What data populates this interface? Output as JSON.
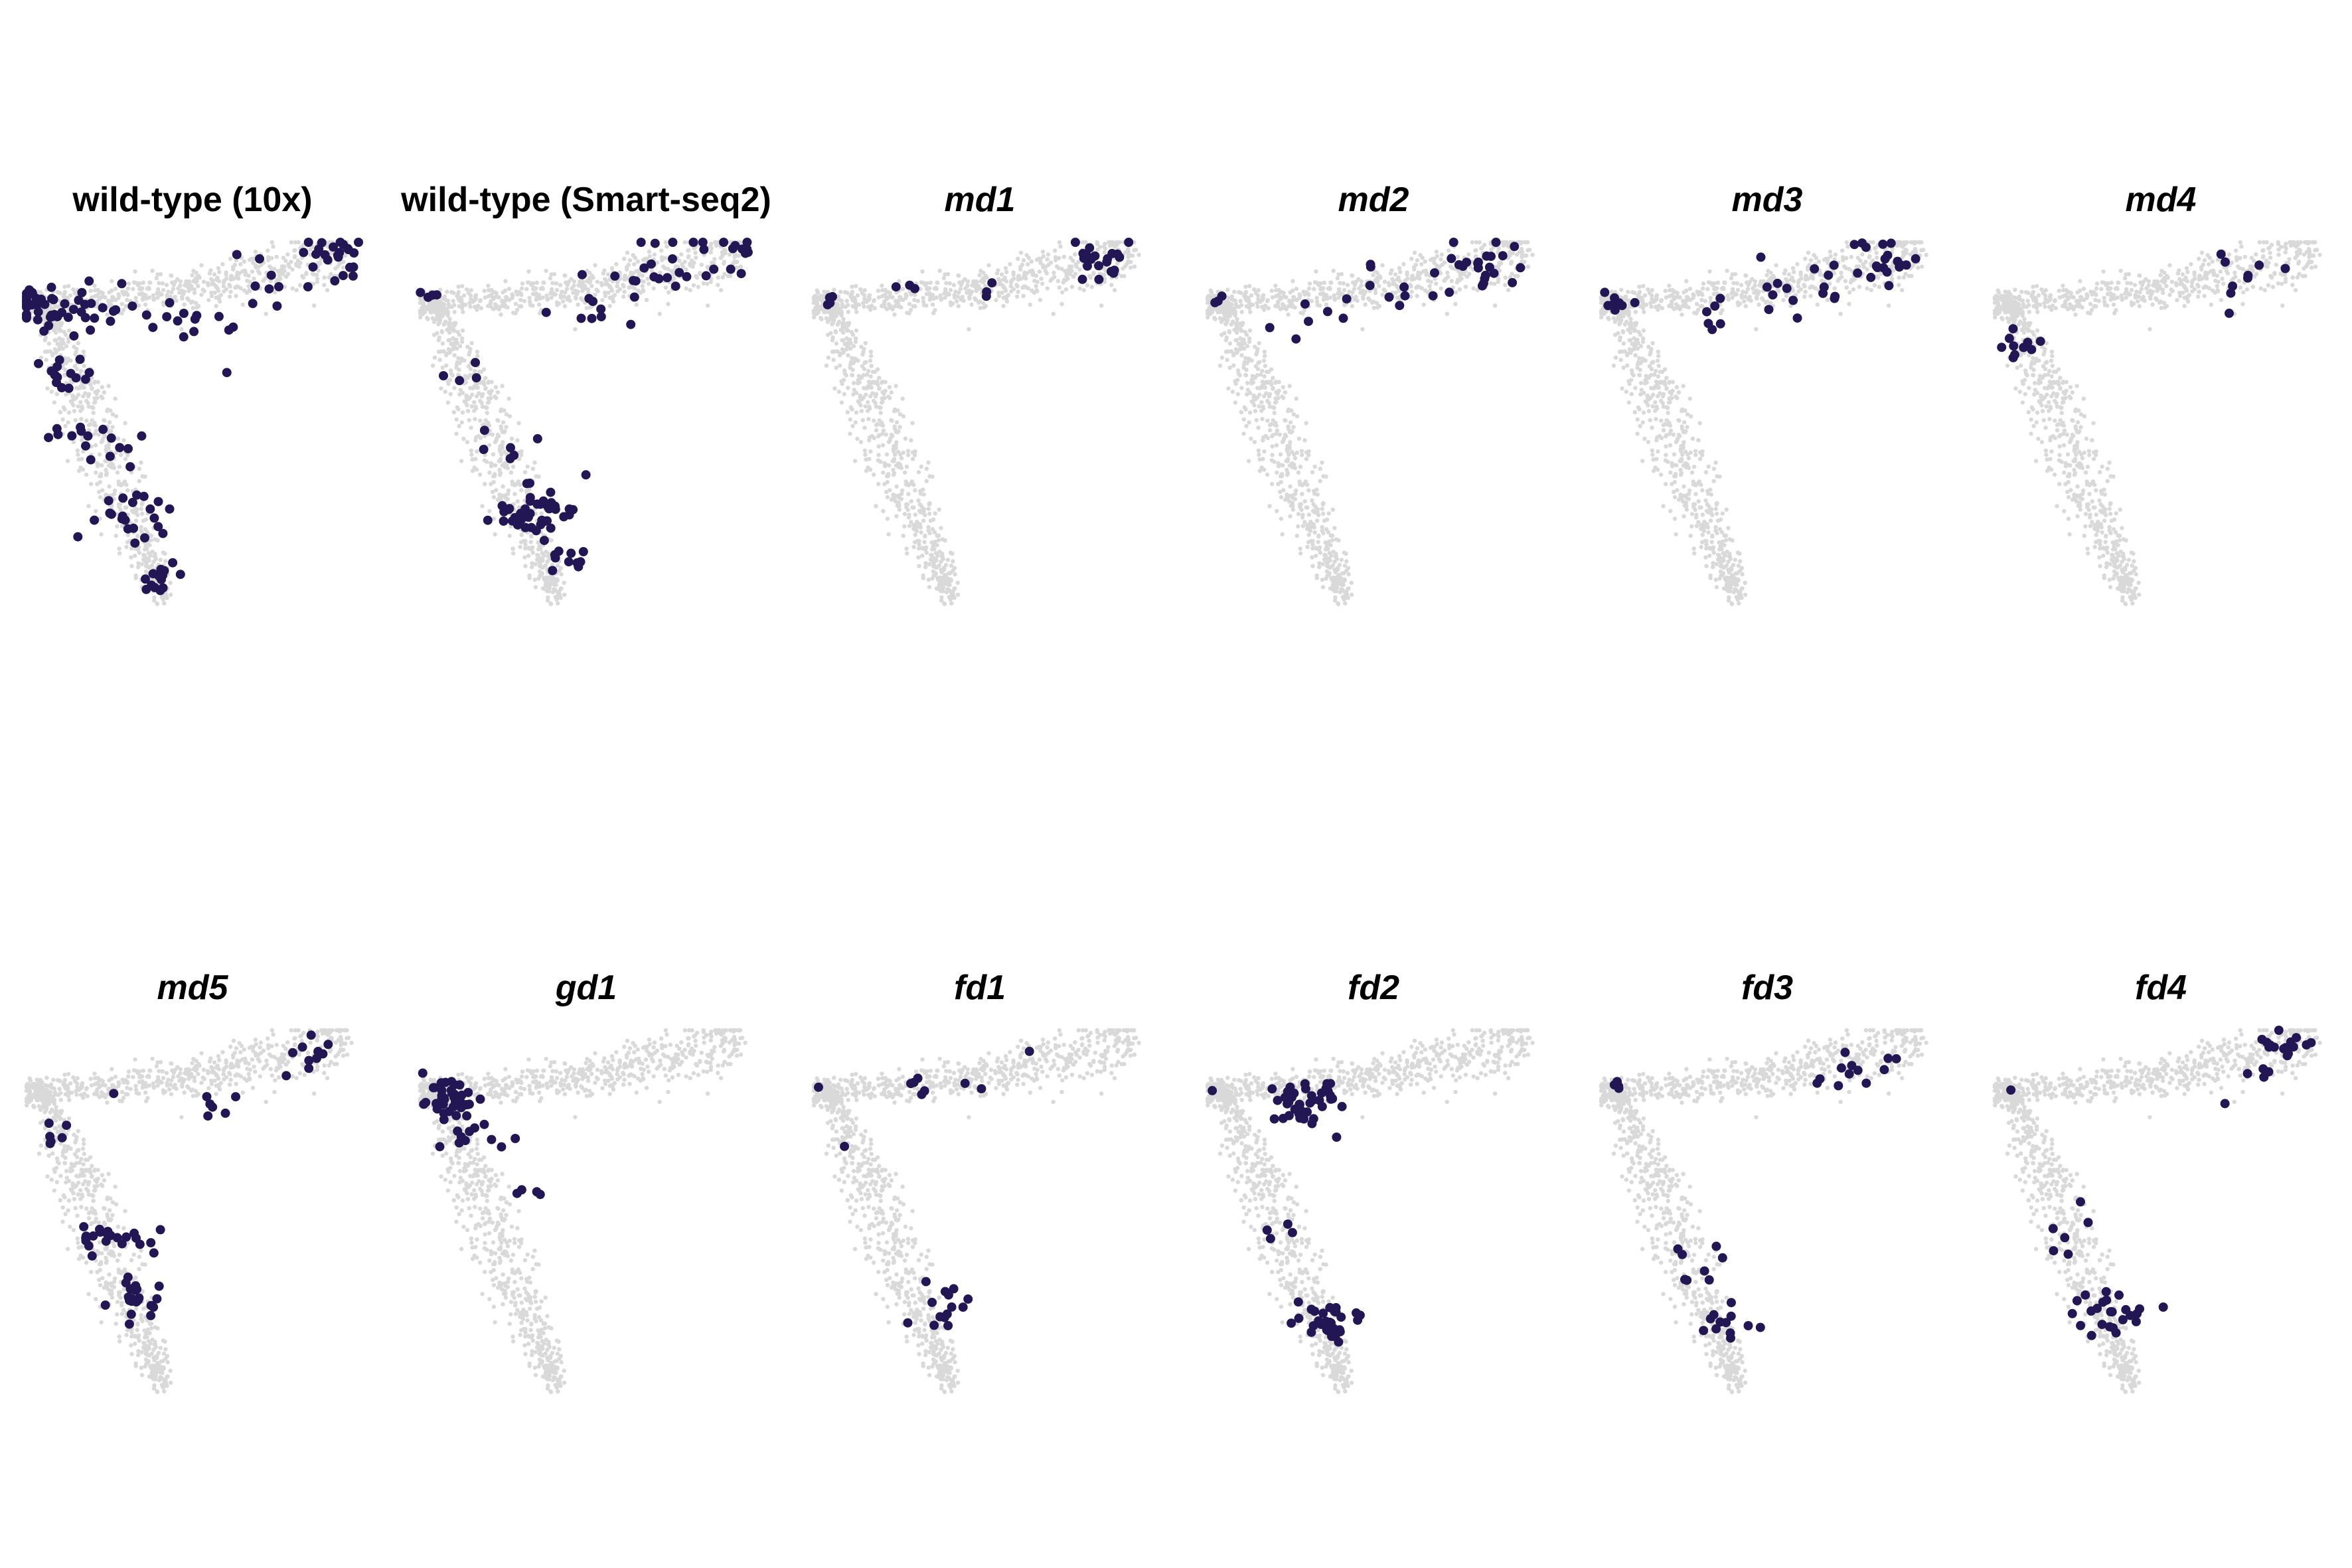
{
  "colors": {
    "background_cells": "#d9d9d9",
    "highlight_cells": "#231654",
    "background": "#ffffff"
  },
  "layout_hint": {
    "rows": 2,
    "cols": 6
  },
  "chart_data": [
    {
      "type": "scatter",
      "title": "wild-type (10x)",
      "italic": false,
      "highlight_clusters": [
        [
          0.0,
          0.17,
          22,
          0.05
        ],
        [
          0.07,
          0.2,
          14,
          0.06
        ],
        [
          0.18,
          0.2,
          18,
          0.08
        ],
        [
          0.42,
          0.17,
          14,
          0.12
        ],
        [
          0.7,
          0.12,
          10,
          0.1
        ],
        [
          0.92,
          0.03,
          22,
          0.06
        ],
        [
          0.1,
          0.35,
          14,
          0.06
        ],
        [
          0.2,
          0.55,
          16,
          0.07
        ],
        [
          0.32,
          0.75,
          22,
          0.08
        ],
        [
          0.38,
          0.92,
          14,
          0.05
        ],
        [
          0.6,
          0.36,
          1,
          0.01
        ]
      ]
    },
    {
      "type": "scatter",
      "title": "wild-type (Smart-seq2)",
      "italic": false,
      "highlight_clusters": [
        [
          0.04,
          0.16,
          4,
          0.03
        ],
        [
          0.5,
          0.18,
          6,
          0.08
        ],
        [
          0.72,
          0.1,
          20,
          0.12
        ],
        [
          0.92,
          0.03,
          14,
          0.06
        ],
        [
          0.12,
          0.35,
          4,
          0.05
        ],
        [
          0.27,
          0.55,
          6,
          0.06
        ],
        [
          0.35,
          0.75,
          44,
          0.07
        ],
        [
          0.44,
          0.88,
          10,
          0.05
        ],
        [
          0.5,
          0.64,
          1,
          0.01
        ]
      ]
    },
    {
      "type": "scatter",
      "title": "md1",
      "italic": true,
      "highlight_clusters": [
        [
          0.04,
          0.16,
          4,
          0.02
        ],
        [
          0.28,
          0.13,
          3,
          0.04
        ],
        [
          0.5,
          0.15,
          3,
          0.04
        ],
        [
          0.86,
          0.06,
          20,
          0.08
        ]
      ]
    },
    {
      "type": "scatter",
      "title": "md2",
      "italic": true,
      "highlight_clusters": [
        [
          0.03,
          0.16,
          3,
          0.02
        ],
        [
          0.3,
          0.2,
          6,
          0.08
        ],
        [
          0.58,
          0.13,
          10,
          0.1
        ],
        [
          0.85,
          0.06,
          22,
          0.08
        ]
      ]
    },
    {
      "type": "scatter",
      "title": "md3",
      "italic": true,
      "highlight_clusters": [
        [
          0.05,
          0.17,
          8,
          0.03
        ],
        [
          0.35,
          0.2,
          6,
          0.08
        ],
        [
          0.63,
          0.12,
          16,
          0.1
        ],
        [
          0.86,
          0.06,
          18,
          0.07
        ]
      ]
    },
    {
      "type": "scatter",
      "title": "md4",
      "italic": true,
      "highlight_clusters": [
        [
          0.08,
          0.28,
          10,
          0.05
        ],
        [
          0.75,
          0.08,
          8,
          0.09
        ],
        [
          0.7,
          0.2,
          1,
          0.01
        ]
      ]
    },
    {
      "type": "scatter",
      "title": "md5",
      "italic": true,
      "highlight_clusters": [
        [
          0.1,
          0.3,
          6,
          0.04
        ],
        [
          0.25,
          0.58,
          22,
          0.07
        ],
        [
          0.33,
          0.75,
          22,
          0.05
        ],
        [
          0.58,
          0.2,
          6,
          0.04
        ],
        [
          0.85,
          0.06,
          10,
          0.06
        ],
        [
          0.25,
          0.18,
          1,
          0.01
        ]
      ]
    },
    {
      "type": "scatter",
      "title": "gd1",
      "italic": true,
      "highlight_clusters": [
        [
          0.08,
          0.19,
          40,
          0.06
        ],
        [
          0.16,
          0.3,
          12,
          0.06
        ],
        [
          0.3,
          0.44,
          4,
          0.04
        ]
      ]
    },
    {
      "type": "scatter",
      "title": "fd1",
      "italic": true,
      "highlight_clusters": [
        [
          0.02,
          0.16,
          1,
          0.01
        ],
        [
          0.3,
          0.16,
          5,
          0.04
        ],
        [
          0.5,
          0.16,
          2,
          0.02
        ],
        [
          0.65,
          0.05,
          1,
          0.01
        ],
        [
          0.1,
          0.33,
          1,
          0.01
        ],
        [
          0.38,
          0.77,
          14,
          0.05
        ]
      ]
    },
    {
      "type": "scatter",
      "title": "fd2",
      "italic": true,
      "highlight_clusters": [
        [
          0.02,
          0.16,
          1,
          0.01
        ],
        [
          0.3,
          0.2,
          40,
          0.07
        ],
        [
          0.22,
          0.55,
          4,
          0.05
        ],
        [
          0.37,
          0.8,
          30,
          0.06
        ]
      ]
    },
    {
      "type": "scatter",
      "title": "fd3",
      "italic": true,
      "highlight_clusters": [
        [
          0.04,
          0.16,
          4,
          0.02
        ],
        [
          0.75,
          0.1,
          12,
          0.07
        ],
        [
          0.28,
          0.64,
          8,
          0.06
        ],
        [
          0.38,
          0.82,
          12,
          0.06
        ]
      ]
    },
    {
      "type": "scatter",
      "title": "fd4",
      "italic": true,
      "highlight_clusters": [
        [
          0.04,
          0.16,
          1,
          0.01
        ],
        [
          0.82,
          0.06,
          20,
          0.08
        ],
        [
          0.25,
          0.55,
          6,
          0.06
        ],
        [
          0.35,
          0.78,
          24,
          0.07
        ]
      ]
    }
  ]
}
